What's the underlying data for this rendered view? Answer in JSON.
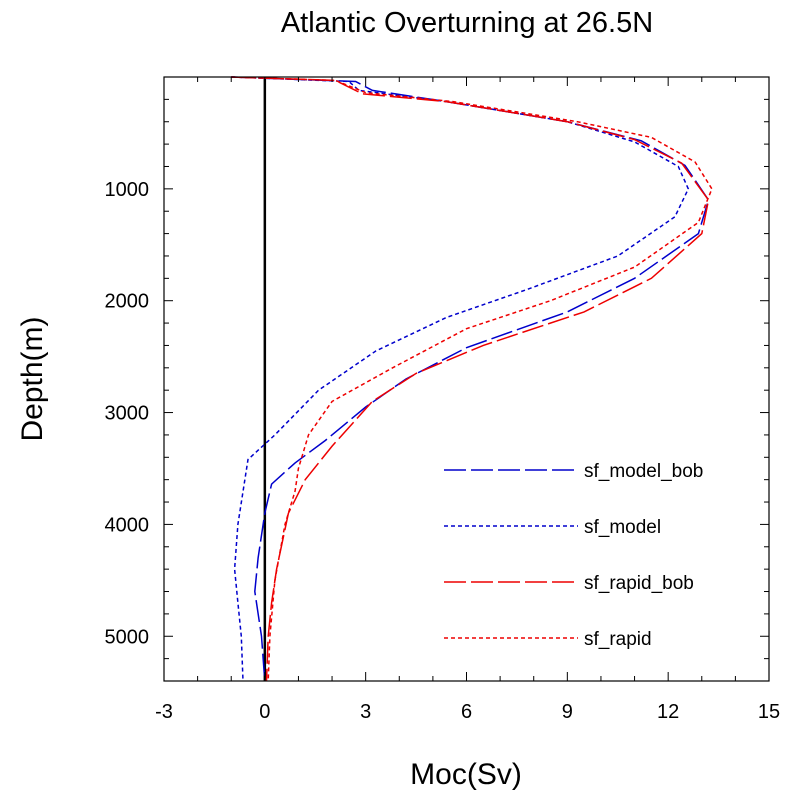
{
  "chart_data": {
    "type": "line",
    "title": "Atlantic Overturning at 26.5N",
    "xlabel": "Moc(Sv)",
    "ylabel": "Depth(m)",
    "xlim": [
      -3,
      15
    ],
    "ylim": [
      0,
      5400
    ],
    "y_inverted": true,
    "xticks": [
      -3,
      0,
      3,
      6,
      9,
      12,
      15
    ],
    "yticks": [
      1000,
      2000,
      3000,
      4000,
      5000
    ],
    "grid": false,
    "legend_position": "lower-right",
    "reference_line": {
      "x": 0,
      "color": "#000000"
    },
    "series": [
      {
        "name": "sf_model_bob",
        "color": "#0000cc",
        "dash": "long-dash",
        "points": [
          [
            -1.0,
            0
          ],
          [
            2.7,
            40
          ],
          [
            3.2,
            120
          ],
          [
            5.4,
            220
          ],
          [
            9.0,
            400
          ],
          [
            11.2,
            570
          ],
          [
            12.5,
            790
          ],
          [
            13.2,
            1100
          ],
          [
            12.9,
            1400
          ],
          [
            11.0,
            1800
          ],
          [
            9.0,
            2100
          ],
          [
            6.0,
            2420
          ],
          [
            4.2,
            2700
          ],
          [
            3.0,
            2950
          ],
          [
            1.8,
            3250
          ],
          [
            0.9,
            3450
          ],
          [
            0.2,
            3640
          ],
          [
            0.0,
            3900
          ],
          [
            -0.2,
            4300
          ],
          [
            -0.3,
            4600
          ],
          [
            -0.1,
            5000
          ],
          [
            0.0,
            5400
          ]
        ]
      },
      {
        "name": "sf_model",
        "color": "#0000cc",
        "dash": "short-dash",
        "points": [
          [
            -1.0,
            0
          ],
          [
            2.5,
            40
          ],
          [
            2.8,
            120
          ],
          [
            5.4,
            220
          ],
          [
            9.0,
            400
          ],
          [
            11.0,
            580
          ],
          [
            12.3,
            800
          ],
          [
            12.6,
            1000
          ],
          [
            12.2,
            1250
          ],
          [
            10.5,
            1600
          ],
          [
            7.8,
            1900
          ],
          [
            5.4,
            2150
          ],
          [
            3.3,
            2450
          ],
          [
            1.6,
            2800
          ],
          [
            0.3,
            3200
          ],
          [
            -0.5,
            3420
          ],
          [
            -0.8,
            4000
          ],
          [
            -0.9,
            4400
          ],
          [
            -0.8,
            4700
          ],
          [
            -0.7,
            5000
          ],
          [
            -0.65,
            5400
          ]
        ]
      },
      {
        "name": "sf_rapid_bob",
        "color": "#ee0000",
        "dash": "long-dash",
        "points": [
          [
            -1.0,
            0
          ],
          [
            2.1,
            30
          ],
          [
            2.9,
            150
          ],
          [
            5.4,
            220
          ],
          [
            9.0,
            400
          ],
          [
            11.0,
            560
          ],
          [
            12.4,
            770
          ],
          [
            13.2,
            1100
          ],
          [
            13.0,
            1400
          ],
          [
            11.5,
            1800
          ],
          [
            9.5,
            2100
          ],
          [
            6.5,
            2400
          ],
          [
            4.5,
            2650
          ],
          [
            3.2,
            2900
          ],
          [
            2.0,
            3300
          ],
          [
            1.2,
            3600
          ],
          [
            0.7,
            3900
          ],
          [
            0.35,
            4400
          ],
          [
            0.2,
            4700
          ],
          [
            0.1,
            5000
          ],
          [
            0.05,
            5400
          ]
        ]
      },
      {
        "name": "sf_rapid",
        "color": "#ee0000",
        "dash": "short-dash",
        "points": [
          [
            -1.0,
            0
          ],
          [
            2.1,
            30
          ],
          [
            3.0,
            140
          ],
          [
            5.6,
            220
          ],
          [
            9.3,
            400
          ],
          [
            11.5,
            540
          ],
          [
            12.8,
            760
          ],
          [
            13.3,
            1000
          ],
          [
            12.9,
            1300
          ],
          [
            11.0,
            1700
          ],
          [
            8.5,
            2000
          ],
          [
            6.0,
            2250
          ],
          [
            3.8,
            2600
          ],
          [
            2.0,
            2900
          ],
          [
            1.3,
            3200
          ],
          [
            1.0,
            3500
          ],
          [
            0.9,
            3700
          ],
          [
            0.6,
            4000
          ],
          [
            0.3,
            4500
          ],
          [
            0.15,
            5000
          ],
          [
            0.1,
            5400
          ]
        ]
      }
    ]
  }
}
